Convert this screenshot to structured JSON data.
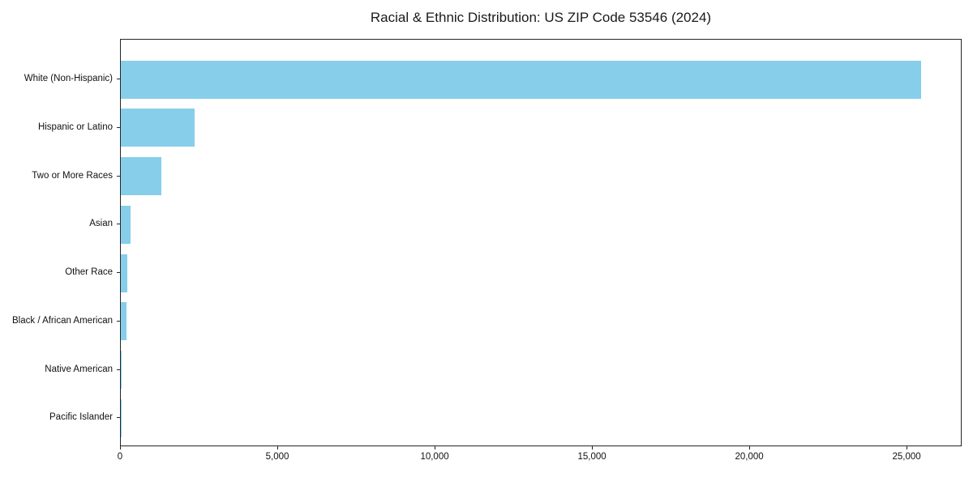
{
  "title": "Racial & Ethnic Distribution: US ZIP Code 53546 (2024)",
  "colors": {
    "bar": "#87CEEB",
    "axis": "#262626",
    "text": "#111111",
    "background": "#FFFFFF"
  },
  "chart_data": {
    "type": "bar",
    "orientation": "horizontal",
    "title": "Racial & Ethnic Distribution: US ZIP Code 53546 (2024)",
    "categories": [
      "White (Non-Hispanic)",
      "Hispanic or Latino",
      "Two or More Races",
      "Asian",
      "Other Race",
      "Black / African American",
      "Native American",
      "Pacific Islander"
    ],
    "values": [
      25440,
      2345,
      1290,
      300,
      205,
      180,
      30,
      10
    ],
    "bar_color": "#87CEEB",
    "xlabel": "",
    "ylabel": "",
    "xlim": [
      0,
      26750
    ],
    "x_ticks": [
      0,
      5000,
      10000,
      15000,
      20000,
      25000
    ],
    "x_tick_labels": [
      "0",
      "5,000",
      "10,000",
      "15,000",
      "20,000",
      "25,000"
    ],
    "grid": false,
    "legend": null
  }
}
